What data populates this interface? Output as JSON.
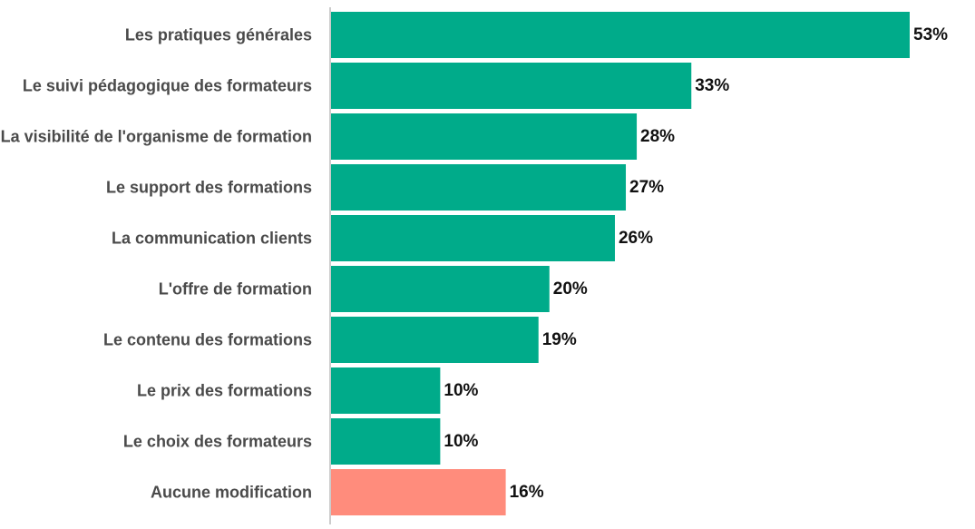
{
  "chart_data": {
    "type": "bar",
    "orientation": "horizontal",
    "title": "",
    "xlabel": "",
    "ylabel": "",
    "categories": [
      "Les pratiques générales",
      "Le suivi pédagogique des formateurs",
      "La visibilité de l'organisme de formation",
      "Le support des formations",
      "La communication clients",
      "L'offre de formation",
      "Le contenu des formations",
      "Le prix des formations",
      "Le choix des formateurs",
      "Aucune modification"
    ],
    "values": [
      53,
      33,
      28,
      27,
      26,
      20,
      19,
      10,
      10,
      16
    ],
    "value_labels": [
      "53%",
      "33%",
      "28%",
      "27%",
      "26%",
      "20%",
      "19%",
      "10%",
      "10%",
      "16%"
    ],
    "bar_colors": [
      "#00ab8a",
      "#00ab8a",
      "#00ab8a",
      "#00ab8a",
      "#00ab8a",
      "#00ab8a",
      "#00ab8a",
      "#00ab8a",
      "#00ab8a",
      "#ff8c7c"
    ],
    "xlim": [
      0,
      53
    ],
    "grid": false,
    "legend": "none"
  },
  "colors": {
    "primary_bar": "#00ab8a",
    "highlight_bar": "#ff8c7c",
    "axis_line": "#cccccc",
    "category_text": "#4a4a4a",
    "value_text": "#111111"
  }
}
